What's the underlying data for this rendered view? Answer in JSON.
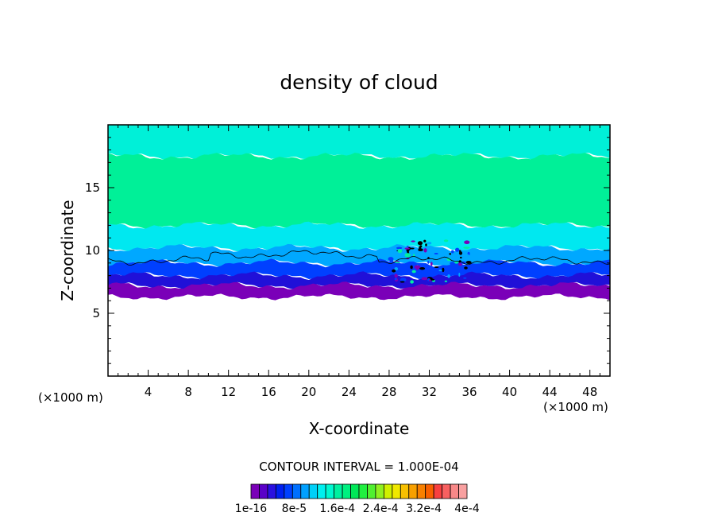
{
  "chart_data": {
    "type": "heatmap",
    "title": "density of cloud",
    "xlabel": "X-coordinate",
    "ylabel": "Z-coordinate",
    "x_unit_left": "(×1000 m)",
    "x_unit_right": "(×1000 m)",
    "xlim": [
      0,
      50
    ],
    "ylim": [
      0,
      20
    ],
    "x_ticks": [
      4,
      8,
      12,
      16,
      20,
      24,
      28,
      32,
      36,
      40,
      44,
      48
    ],
    "y_ticks": [
      5,
      10,
      15
    ],
    "contour_interval_text": "CONTOUR INTERVAL = 1.000E-04",
    "colorbar": {
      "min": 1e-16,
      "max": 0.0004,
      "labels": [
        "1e-16",
        "8e-5",
        "1.6e-4",
        "2.4e-4",
        "3.2e-4",
        "4e-4"
      ],
      "colors": [
        "#7a00b8",
        "#5a00c8",
        "#2a10e0",
        "#0020f0",
        "#0040ff",
        "#0070ff",
        "#00a0ff",
        "#00d0f8",
        "#00f0f0",
        "#00f8d0",
        "#00f0a0",
        "#00f080",
        "#00e858",
        "#20f040",
        "#50f030",
        "#90f020",
        "#d0f000",
        "#f0e800",
        "#f8c000",
        "#f8a000",
        "#f88000",
        "#f86000",
        "#f84040",
        "#f86060",
        "#f88888",
        "#f8a0a0"
      ]
    },
    "layers": [
      {
        "name": "cloud top band",
        "z_range": [
          17.5,
          20
        ],
        "color": "#00f0d8"
      },
      {
        "name": "upper green band",
        "z_range": [
          12,
          17.5
        ],
        "color": "#00f098"
      },
      {
        "name": "mid cyan band",
        "z_range": [
          10.2,
          12
        ],
        "color": "#00e8f0"
      },
      {
        "name": "light blue band",
        "z_range": [
          9,
          10.2
        ],
        "color": "#00a8ff"
      },
      {
        "name": "blue band",
        "z_range": [
          8,
          9
        ],
        "color": "#0040ff"
      },
      {
        "name": "dark blue band",
        "z_range": [
          7.2,
          8
        ],
        "color": "#2010d8"
      },
      {
        "name": "cloud base (purple)",
        "z_range": [
          6.3,
          7.2
        ],
        "color": "#7a00b8"
      }
    ],
    "contour_line_z_approx": 9.2,
    "disturbance_x_range": [
      28,
      36
    ]
  }
}
